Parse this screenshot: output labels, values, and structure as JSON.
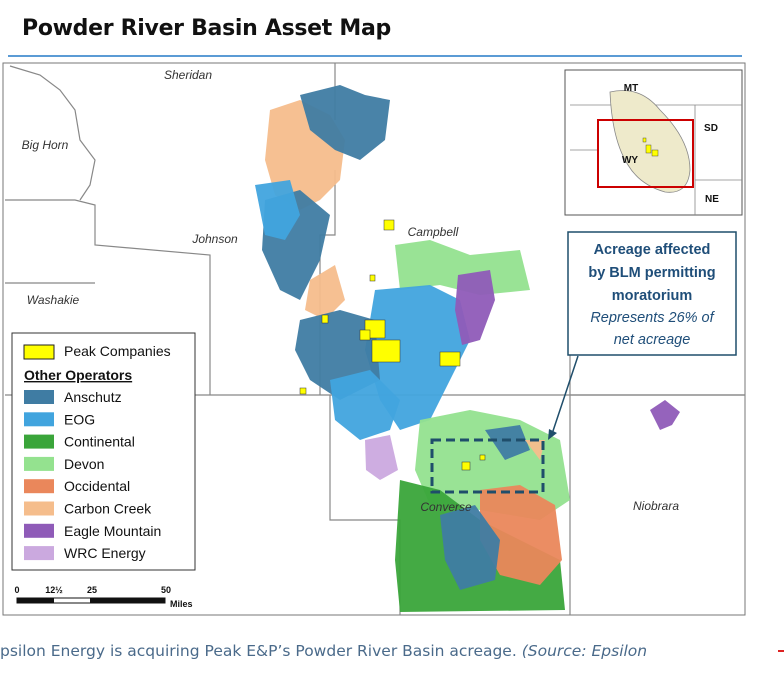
{
  "header": {
    "title": "Powder River Basin Asset Map"
  },
  "map": {
    "counties": [
      "Sheridan",
      "Big Horn",
      "Johnson",
      "Campbell",
      "Washakie",
      "Converse",
      "Niobrara"
    ],
    "inset": {
      "labels": [
        "MT",
        "SD",
        "WY",
        "NE"
      ]
    },
    "callout": {
      "bold_lines": [
        "Acreage affected",
        "by BLM permitting",
        "moratorium"
      ],
      "italic_lines": [
        "Represents 26% of",
        "net acreage"
      ]
    },
    "legend": {
      "peak": {
        "label": "Peak Companies",
        "color": "#ffff00"
      },
      "heading": "Other Operators",
      "operators": [
        {
          "name": "Anschutz",
          "color": "#3f7ca3"
        },
        {
          "name": "EOG",
          "color": "#41a4de"
        },
        {
          "name": "Continental",
          "color": "#3aa53a"
        },
        {
          "name": "Devon",
          "color": "#94e28f"
        },
        {
          "name": "Occidental",
          "color": "#ea875b"
        },
        {
          "name": "Carbon Creek",
          "color": "#f5bd8c"
        },
        {
          "name": "Eagle Mountain",
          "color": "#8f5bb8"
        },
        {
          "name": "WRC Energy",
          "color": "#cba9df"
        }
      ]
    },
    "scale": {
      "labels": [
        "0",
        "12½",
        "25",
        "50"
      ],
      "unit": "Miles"
    }
  },
  "caption": {
    "text": "psilon Energy is acquiring Peak E&P’s Powder River Basin acreage.",
    "source": "(Source: Epsilon"
  }
}
